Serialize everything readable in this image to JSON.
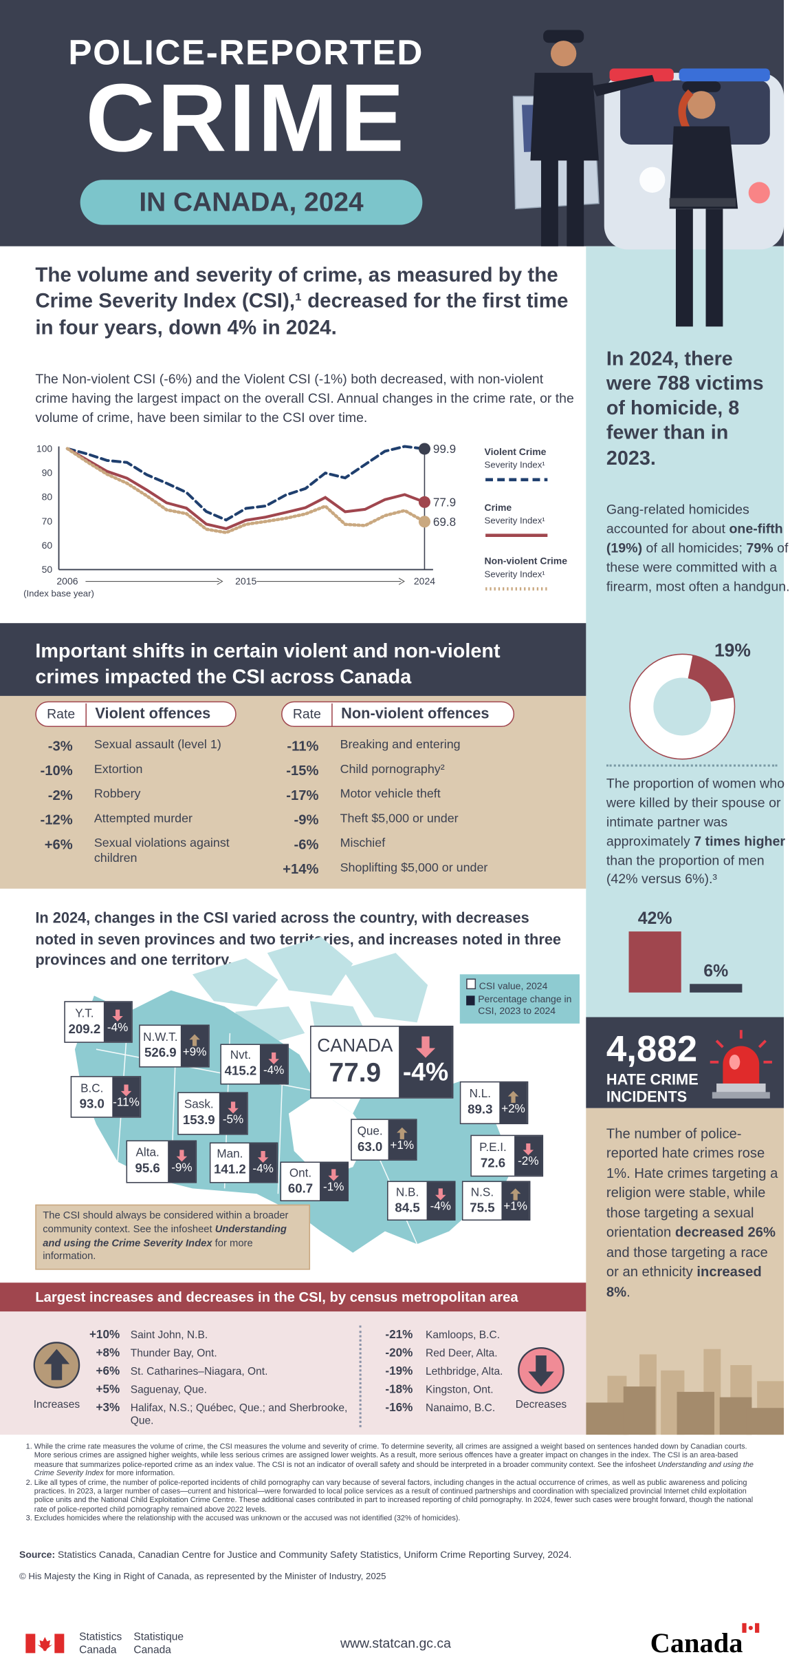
{
  "header": {
    "title_line1": "POLICE-REPORTED",
    "title_line2": "CRIME",
    "subtitle": "IN CANADA, 2024"
  },
  "intro": {
    "heading": "The volume and severity of crime, as measured by the Crime Severity Index (CSI),¹ decreased for the first time in four years, down 4% in 2024.",
    "paragraph": "The Non-violent CSI (-6%) and the Violent CSI (-1%) both decreased, with non-violent crime having the largest impact on the overall CSI. Annual changes in the crime rate, or the volume of crime, have been similar to the CSI over time."
  },
  "chart_data": {
    "type": "line",
    "x": [
      2006,
      2007,
      2008,
      2009,
      2010,
      2011,
      2012,
      2013,
      2014,
      2015,
      2016,
      2017,
      2018,
      2019,
      2020,
      2021,
      2022,
      2023,
      2024
    ],
    "x_tick_labels": [
      "2006",
      "2015",
      "2024"
    ],
    "x_base_note": "(Index base year)",
    "y_ticks": [
      100,
      90,
      80,
      70,
      60,
      50
    ],
    "ylim": [
      50,
      100
    ],
    "grid": false,
    "legend_placement": "right",
    "series": [
      {
        "name": "Violent Crime Severity Index¹",
        "name_bold": "Violent Crime",
        "name_rest": "Severity Index¹",
        "style": "dashed",
        "color": "#1f3f6e",
        "values": [
          100,
          97.8,
          95.1,
          94.3,
          89.2,
          85.7,
          81.9,
          74.0,
          70.5,
          75.3,
          76.3,
          80.8,
          83.5,
          89.9,
          87.9,
          93.4,
          98.9,
          100.9,
          99.9
        ],
        "end_label": "99.9"
      },
      {
        "name": "Crime Severity Index¹",
        "name_bold": "Crime",
        "name_rest": "Severity Index¹",
        "style": "solid",
        "color": "#a0464e",
        "values": [
          100,
          95.3,
          90.6,
          87.8,
          82.9,
          77.6,
          75.4,
          68.8,
          66.9,
          70.4,
          71.7,
          73.6,
          75.6,
          79.8,
          73.9,
          74.9,
          78.9,
          81.0,
          77.9
        ],
        "end_label": "77.9"
      },
      {
        "name": "Non-violent Crime Severity Index¹",
        "name_bold": "Non-violent Crime",
        "name_rest": "Severity Index¹",
        "style": "dotted",
        "color": "#c9a880",
        "values": [
          100,
          94.5,
          89.4,
          85.7,
          80.5,
          74.7,
          73.1,
          66.7,
          65.3,
          68.7,
          69.9,
          71.2,
          73.0,
          76.2,
          68.7,
          68.2,
          72.3,
          74.4,
          69.8
        ],
        "end_label": "69.8"
      }
    ]
  },
  "sidebar": {
    "homicide_heading": "In 2024, there were 788 victims of homicide, 8 fewer than in 2023.",
    "gang_text_1": "Gang-related homicides accounted for about ",
    "gang_bold_1": "one-fifth (19%)",
    "gang_text_2": " of all homicides; ",
    "gang_bold_2": "79%",
    "gang_text_3": " of these were committed with a firearm, most often a handgun.",
    "donut_label": "19%",
    "donut_fraction": 0.19,
    "women_text_1": "The proportion of women who were killed by their spouse or intimate partner was approximately ",
    "women_bold": "7 times higher",
    "women_text_2": " than the proportion of men (42% versus 6%).³",
    "bars": [
      {
        "label": "42%",
        "value": 42,
        "color": "#a0464e"
      },
      {
        "label": "6%",
        "value": 6,
        "color": "#3b4050"
      }
    ],
    "hate_number": "4,882",
    "hate_label_1": "HATE CRIME",
    "hate_label_2": "INCIDENTS",
    "hate_text_1": "The number of police-reported hate crimes rose 1%. Hate crimes targeting a religion were stable, while those targeting a sexual orientation ",
    "hate_bold_1": "decreased 26%",
    "hate_text_2": " and those targeting a race or an ethnicity ",
    "hate_bold_2": "increased 8%",
    "hate_text_3": "."
  },
  "shifts": {
    "heading": "Important shifts in certain violent and non-violent crimes impacted the CSI across Canada",
    "rate_header": "Rate",
    "violent_header": "Violent offences",
    "nonviolent_header": "Non-violent offences",
    "violent": [
      {
        "rate": "-3%",
        "label": "Sexual assault (level 1)"
      },
      {
        "rate": "-10%",
        "label": "Extortion"
      },
      {
        "rate": "-2%",
        "label": "Robbery"
      },
      {
        "rate": "-12%",
        "label": "Attempted murder"
      },
      {
        "rate": "+6%",
        "label": "Sexual violations against children"
      }
    ],
    "nonviolent": [
      {
        "rate": "-11%",
        "label": "Breaking and entering"
      },
      {
        "rate": "-15%",
        "label": "Child pornography²"
      },
      {
        "rate": "-17%",
        "label": "Motor vehicle theft"
      },
      {
        "rate": "-9%",
        "label": "Theft $5,000 or under"
      },
      {
        "rate": "-6%",
        "label": "Mischief"
      },
      {
        "rate": "+14%",
        "label": "Shoplifting $5,000 or under"
      }
    ]
  },
  "map": {
    "heading": "In 2024, changes in the CSI varied across the country, with decreases noted in seven provinces and two territories, and increases noted in three provinces and one territory.",
    "legend_value": "CSI value, 2024",
    "legend_change": "Percentage change in CSI, 2023 to 2024",
    "regions": [
      {
        "name": "Y.T.",
        "value": "209.2",
        "change": "-4%",
        "direction": "down"
      },
      {
        "name": "N.W.T.",
        "value": "526.9",
        "change": "+9%",
        "direction": "up"
      },
      {
        "name": "Nvt.",
        "value": "415.2",
        "change": "-4%",
        "direction": "down"
      },
      {
        "name": "CANADA",
        "value": "77.9",
        "change": "-4%",
        "direction": "down"
      },
      {
        "name": "B.C.",
        "value": "93.0",
        "change": "-11%",
        "direction": "down"
      },
      {
        "name": "Sask.",
        "value": "153.9",
        "change": "-5%",
        "direction": "down"
      },
      {
        "name": "N.L.",
        "value": "89.3",
        "change": "+2%",
        "direction": "up"
      },
      {
        "name": "Que.",
        "value": "63.0",
        "change": "+1%",
        "direction": "up"
      },
      {
        "name": "Alta.",
        "value": "95.6",
        "change": "-9%",
        "direction": "down"
      },
      {
        "name": "Man.",
        "value": "141.2",
        "change": "-4%",
        "direction": "down"
      },
      {
        "name": "P.E.I.",
        "value": "72.6",
        "change": "-2%",
        "direction": "down"
      },
      {
        "name": "Ont.",
        "value": "60.7",
        "change": "-1%",
        "direction": "down"
      },
      {
        "name": "N.B.",
        "value": "84.5",
        "change": "-4%",
        "direction": "down"
      },
      {
        "name": "N.S.",
        "value": "75.5",
        "change": "+1%",
        "direction": "up"
      }
    ],
    "note_1": "The CSI should always be considered within a broader community context. See the infosheet ",
    "note_italic": "Understanding and using the Crime Severity Index",
    "note_2": " for more information."
  },
  "cma": {
    "heading": "Largest increases and decreases in the CSI, by census metropolitan area",
    "increases_label": "Increases",
    "decreases_label": "Decreases",
    "increases": [
      {
        "rate": "+10%",
        "label": "Saint John, N.B."
      },
      {
        "rate": "+8%",
        "label": "Thunder Bay, Ont."
      },
      {
        "rate": "+6%",
        "label": "St. Catharines–Niagara, Ont."
      },
      {
        "rate": "+5%",
        "label": "Saguenay, Que."
      },
      {
        "rate": "+3%",
        "label": "Halifax, N.S.; Québec, Que.; and Sherbrooke, Que."
      }
    ],
    "decreases": [
      {
        "rate": "-21%",
        "label": "Kamloops, B.C."
      },
      {
        "rate": "-20%",
        "label": "Red Deer, Alta."
      },
      {
        "rate": "-19%",
        "label": "Lethbridge, Alta."
      },
      {
        "rate": "-18%",
        "label": "Kingston, Ont."
      },
      {
        "rate": "-16%",
        "label": "Nanaimo, B.C."
      }
    ]
  },
  "footnotes": {
    "n1_a": "While the crime rate measures the volume of crime, the CSI measures the volume and severity of crime. To determine severity, all crimes are assigned a weight based on sentences handed down by Canadian courts. More serious crimes are assigned higher weights, while less serious crimes are assigned lower weights. As a result, more serious offences have a greater impact on changes in the index. The CSI is an area-based measure that summarizes police-reported crime as an index value. The CSI is not an indicator of overall safety and should be interpreted in a broader community context. See the infosheet ",
    "n1_italic": "Understanding and using the Crime Severity Index",
    "n1_b": " for more information.",
    "n2": "Like all types of crime, the number of police-reported incidents of child pornography can vary because of several factors, including changes in the actual occurrence of crimes, as well as public awareness and policing practices. In 2023, a larger number of cases—current and historical—were forwarded to local police services as a result of continued partnerships and coordination with specialized provincial Internet child exploitation police units and the National Child Exploitation Crime Centre. These additional cases contributed in part to increased reporting of child pornography. In 2024, fewer such cases were brought forward, though the national rate of police-reported child pornography remained above 2022 levels.",
    "n3": "Excludes homicides where the relationship with the accused was unknown or the accused was not identified (32% of homicides).",
    "source_label": "Source:",
    "source_text": " Statistics Canada, Canadian Centre for Justice and Community Safety Statistics, Uniform Crime Reporting Survey, 2024.",
    "copyright": "© His Majesty the King in Right of Canada, as represented by the Minister of Industry, 2025"
  },
  "footer": {
    "statcan_en_1": "Statistics",
    "statcan_en_2": "Canada",
    "statcan_fr_1": "Statistique",
    "statcan_fr_2": "Canada",
    "url": "www.statcan.gc.ca",
    "wordmark": "Canada"
  },
  "colors": {
    "navy": "#3b4050",
    "teal": "#7cc5cb",
    "light_blue": "#c5e3e6",
    "red": "#a0464e",
    "beige": "#dccab0",
    "pink": "#f2e3e4",
    "down_arrow": "#f08b96",
    "up_arrow": "#b69a78"
  }
}
